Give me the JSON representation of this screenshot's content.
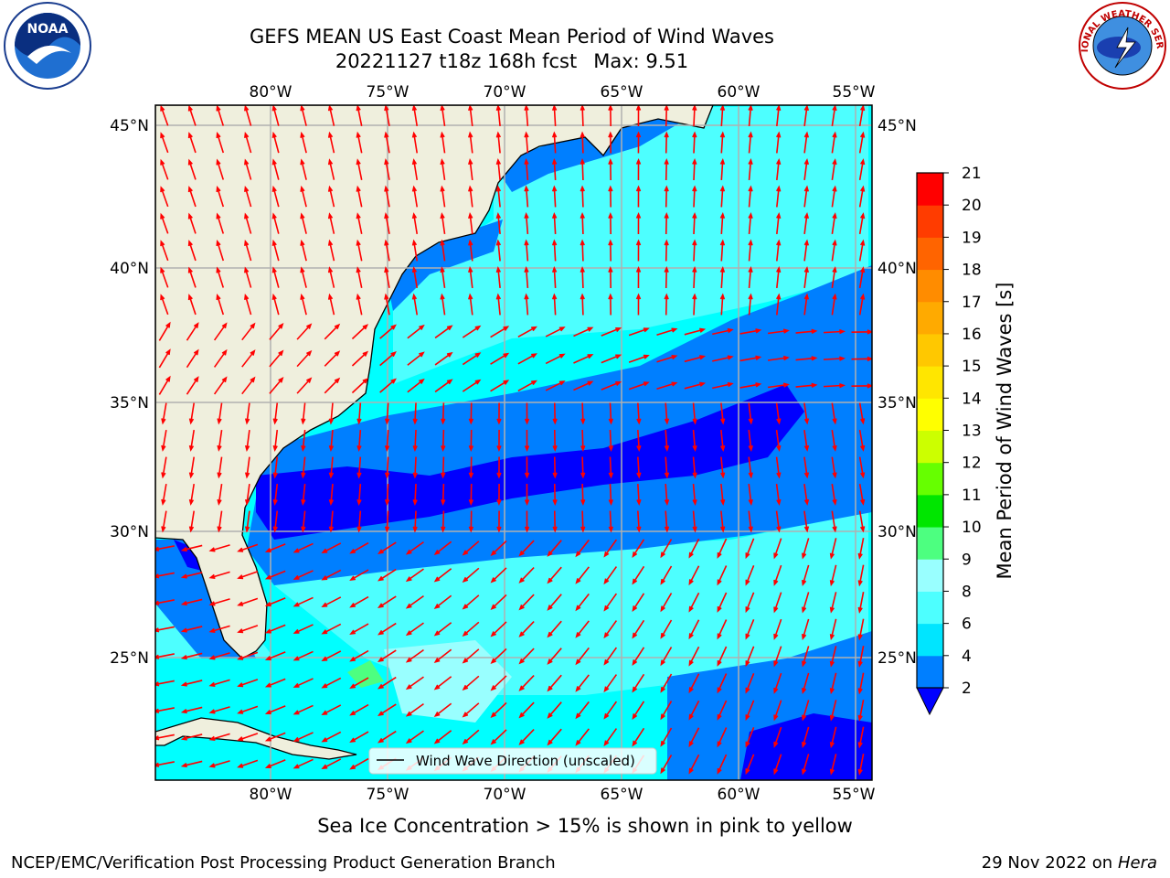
{
  "header": {
    "title": "GEFS MEAN US East Coast Mean Period of Wind Waves",
    "subtitle_date": "20221127 t18z 168h fcst",
    "subtitle_max": "Max: 9.51"
  },
  "logos": {
    "left": {
      "name": "noaa-logo",
      "text": "NOAA"
    },
    "right": {
      "name": "nws-logo",
      "text": "NATIONAL WEATHER SERVICE"
    }
  },
  "map": {
    "lon_labels": [
      "80°W",
      "75°W",
      "70°W",
      "65°W",
      "60°W",
      "55°W"
    ],
    "lat_labels": [
      "45°N",
      "40°N",
      "35°N",
      "30°N",
      "25°N"
    ],
    "lon_values": [
      -80,
      -75,
      -70,
      -65,
      -60,
      -55
    ],
    "lat_values": [
      45,
      40,
      35,
      30,
      25
    ],
    "extent": {
      "lon_min": -85,
      "lon_max": -54.4,
      "lat_min": 20.5,
      "lat_max": 46
    },
    "colors": {
      "land": "#efefdd",
      "ocean_base": "#00ffff",
      "grid": "#b0b0b0",
      "arrows": "#ff0000"
    },
    "legend_label": "Wind Wave Direction (unscaled)"
  },
  "colorbar": {
    "label": "Mean Period of Wind Waves [s]",
    "ticks": [
      "21",
      "20",
      "19",
      "18",
      "17",
      "16",
      "15",
      "14",
      "13",
      "12",
      "11",
      "10",
      "9",
      "8",
      "6",
      "4",
      "2"
    ],
    "colors_bottom_to_top": [
      "#007fff",
      "#00e5ff",
      "#4dffff",
      "#99ffff",
      "#4dff80",
      "#00e600",
      "#66ff00",
      "#ccff00",
      "#ffff00",
      "#ffe600",
      "#ffc800",
      "#ffaa00",
      "#ff8c00",
      "#ff6400",
      "#ff3c00",
      "#ff0000"
    ],
    "underflow_color": "#0000ff"
  },
  "footer": {
    "ice_note": "Sea Ice Concentration > 15% is shown in pink to yellow",
    "credit": "NCEP/EMC/Verification Post Processing Product Generation Branch",
    "date": "29 Nov 2022 on",
    "machine": "Hera"
  }
}
